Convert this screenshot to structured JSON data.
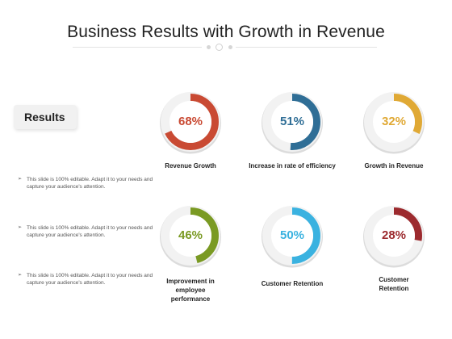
{
  "title": "Business Results with Growth in Revenue",
  "results_label": "Results",
  "bullets": [
    "This slide is 100% editable. Adapt it to your needs and capture your audience's attention.",
    "This slide is 100% editable. Adapt it to your needs and capture your audience's attention.",
    "This slide is 100% editable. Adapt it to your needs and capture your audience's attention."
  ],
  "bullet_marker": "➢",
  "metrics": [
    {
      "percent": 68,
      "text": "68%",
      "label": "Revenue Growth",
      "color": "#c94a33"
    },
    {
      "percent": 51,
      "text": "51%",
      "label": "Increase in rate of efficiency",
      "color": "#2f6e96"
    },
    {
      "percent": 32,
      "text": "32%",
      "label": "Growth in Revenue",
      "color": "#e0a935"
    },
    {
      "percent": 46,
      "text": "46%",
      "label": "Improvement in employee performance",
      "color": "#7a9a23"
    },
    {
      "percent": 50,
      "text": "50%",
      "label": "Customer Retention",
      "color": "#3ab2e0"
    },
    {
      "percent": 28,
      "text": "28%",
      "label": "Customer Retention",
      "color": "#9c2a2e"
    }
  ]
}
